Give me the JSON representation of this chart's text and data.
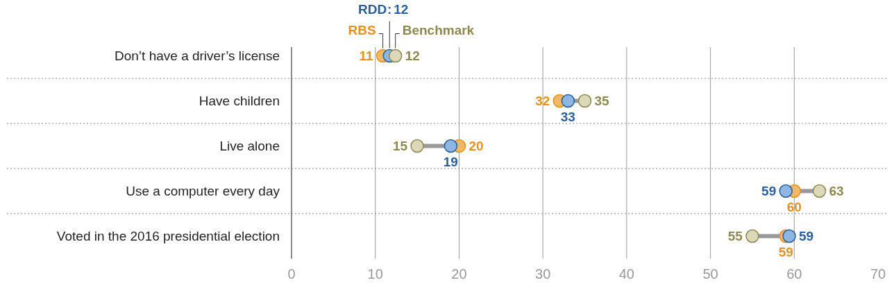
{
  "chart_data": {
    "type": "scatter",
    "orientation": "horizontal",
    "categories": [
      "Don’t have a driver’s license",
      "Have children",
      "Live alone",
      "Use a computer every day",
      "Voted in the 2016 presidential election"
    ],
    "series": [
      {
        "name": "RBS",
        "color": "#e8901e",
        "values": [
          10.9,
          32,
          20,
          60,
          59.0
        ],
        "value_labels": [
          "11",
          "32",
          "20",
          "60",
          "59"
        ]
      },
      {
        "name": "RDD",
        "color": "#2a5f9e",
        "values": [
          11.7,
          33,
          19,
          59,
          59.4
        ],
        "value_labels": [
          "12",
          "33",
          "19",
          "59",
          "59"
        ]
      },
      {
        "name": "Benchmark",
        "color": "#8c8a50",
        "values": [
          12.4,
          35,
          15,
          63,
          55
        ],
        "value_labels": [
          "12",
          "35",
          "15",
          "63",
          "55"
        ]
      }
    ],
    "xlim": [
      0,
      70
    ],
    "xticks": [
      0,
      10,
      20,
      30,
      40,
      50,
      60,
      70
    ],
    "grid": "x",
    "legend": "top",
    "marker": "circle",
    "annotations": [
      {
        "text": ":",
        "x": 11.7,
        "y": "Don’t have a driver’s license"
      }
    ]
  }
}
